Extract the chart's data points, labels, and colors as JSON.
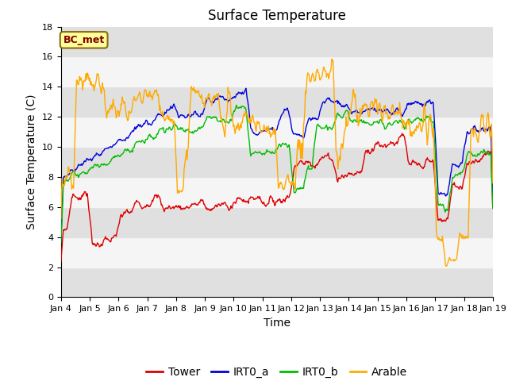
{
  "title": "Surface Temperature",
  "ylabel": "Surface Temperature (C)",
  "xlabel": "Time",
  "ylim": [
    0,
    18
  ],
  "yticks": [
    0,
    2,
    4,
    6,
    8,
    10,
    12,
    14,
    16,
    18
  ],
  "date_labels": [
    "Jan 4",
    "Jan 5",
    "Jan 6",
    "Jan 7",
    "Jan 8",
    "Jan 9",
    "Jan 10",
    "Jan 11",
    "Jan 12",
    "Jan 13",
    "Jan 14",
    "Jan 15",
    "Jan 16",
    "Jan 17",
    "Jan 18",
    "Jan 19"
  ],
  "n_days": 15,
  "points_per_day": 48,
  "bc_met_label": "BC_met",
  "legend_labels": [
    "Tower",
    "IRT0_a",
    "IRT0_b",
    "Arable"
  ],
  "line_colors": [
    "#dd0000",
    "#0000dd",
    "#00bb00",
    "#ffaa00"
  ],
  "background_color": "#ffffff",
  "plot_bg_light": "#f5f5f5",
  "plot_bg_dark": "#e0e0e0",
  "title_fontsize": 12,
  "axis_label_fontsize": 10,
  "tick_fontsize": 8,
  "legend_fontsize": 10
}
